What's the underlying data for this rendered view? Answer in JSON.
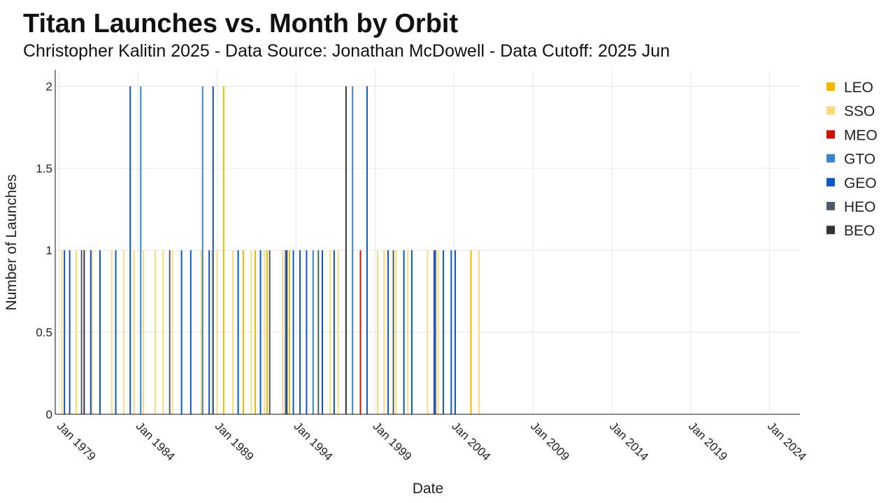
{
  "chart_data": {
    "type": "bar",
    "title": "Titan Launches vs. Month by Orbit",
    "subtitle": "Christopher Kalitin 2025 - Data Source: Jonathan McDowell - Data Cutoff: 2025 Jun",
    "xlabel": "Date",
    "ylabel": "Number of Launches",
    "xlim": [
      "1978-10",
      "2025-12"
    ],
    "ylim": [
      0,
      2.1
    ],
    "x_ticks": [
      "Jan 1979",
      "Jan 1984",
      "Jan 1989",
      "Jan 1994",
      "Jan 1999",
      "Jan 2004",
      "Jan 2009",
      "Jan 2014",
      "Jan 2019",
      "Jan 2024"
    ],
    "x_tick_dates": [
      "1979-01",
      "1984-01",
      "1989-01",
      "1994-01",
      "1999-01",
      "2004-01",
      "2009-01",
      "2014-01",
      "2019-01",
      "2024-01"
    ],
    "y_ticks": [
      0,
      0.5,
      1,
      1.5,
      2
    ],
    "y_tick_labels": [
      "0",
      "0.5",
      "1",
      "1.5",
      "2"
    ],
    "grid": true,
    "legend_position": "right",
    "series": [
      {
        "name": "LEO",
        "color": "#f5b800",
        "points": [
          {
            "x": "1989-06",
            "y": 2
          },
          {
            "x": "1990-09",
            "y": 1
          },
          {
            "x": "1991-06",
            "y": 1
          },
          {
            "x": "1992-03",
            "y": 1
          },
          {
            "x": "1993-08",
            "y": 1
          },
          {
            "x": "2005-02",
            "y": 1
          }
        ]
      },
      {
        "name": "SSO",
        "color": "#fcd97a",
        "points": [
          {
            "x": "1979-03",
            "y": 1
          },
          {
            "x": "1980-02",
            "y": 1
          },
          {
            "x": "1981-02",
            "y": 1
          },
          {
            "x": "1982-05",
            "y": 1
          },
          {
            "x": "1983-02",
            "y": 1
          },
          {
            "x": "1983-10",
            "y": 1
          },
          {
            "x": "1984-05",
            "y": 1
          },
          {
            "x": "1985-02",
            "y": 1
          },
          {
            "x": "1985-08",
            "y": 1
          },
          {
            "x": "1986-03",
            "y": 1
          },
          {
            "x": "1988-01",
            "y": 1
          },
          {
            "x": "1988-09",
            "y": 1
          },
          {
            "x": "1989-01",
            "y": 1
          },
          {
            "x": "1990-01",
            "y": 1
          },
          {
            "x": "1991-03",
            "y": 1
          },
          {
            "x": "1992-01",
            "y": 1
          },
          {
            "x": "1993-03",
            "y": 1
          },
          {
            "x": "1996-03",
            "y": 1
          },
          {
            "x": "1996-09",
            "y": 1
          },
          {
            "x": "1997-03",
            "y": 1
          },
          {
            "x": "1999-03",
            "y": 1
          },
          {
            "x": "1999-08",
            "y": 1
          },
          {
            "x": "2000-05",
            "y": 1
          },
          {
            "x": "2001-02",
            "y": 1
          },
          {
            "x": "2002-05",
            "y": 1
          },
          {
            "x": "2003-01",
            "y": 1
          },
          {
            "x": "2005-08",
            "y": 1
          }
        ]
      },
      {
        "name": "MEO",
        "color": "#cc1100",
        "points": [
          {
            "x": "1998-02",
            "y": 1
          }
        ]
      },
      {
        "name": "GTO",
        "color": "#3a84c9",
        "points": [
          {
            "x": "1984-03",
            "y": 2
          },
          {
            "x": "1988-02",
            "y": 2
          },
          {
            "x": "1997-08",
            "y": 2
          },
          {
            "x": "1993-05",
            "y": 1
          },
          {
            "x": "1995-02",
            "y": 1
          }
        ]
      },
      {
        "name": "GEO",
        "color": "#0d56c9",
        "points": [
          {
            "x": "1979-05",
            "y": 1
          },
          {
            "x": "1979-09",
            "y": 1
          },
          {
            "x": "1981-01",
            "y": 1
          },
          {
            "x": "1981-08",
            "y": 1
          },
          {
            "x": "1982-08",
            "y": 1
          },
          {
            "x": "1983-07",
            "y": 2
          },
          {
            "x": "1986-10",
            "y": 1
          },
          {
            "x": "1987-05",
            "y": 1
          },
          {
            "x": "1988-07",
            "y": 1
          },
          {
            "x": "1988-10",
            "y": 2
          },
          {
            "x": "1990-05",
            "y": 1
          },
          {
            "x": "1991-10",
            "y": 1
          },
          {
            "x": "1993-11",
            "y": 1
          },
          {
            "x": "1994-04",
            "y": 1
          },
          {
            "x": "1994-09",
            "y": 1
          },
          {
            "x": "1995-09",
            "y": 1
          },
          {
            "x": "1996-06",
            "y": 1
          },
          {
            "x": "1998-07",
            "y": 2
          },
          {
            "x": "1999-11",
            "y": 1
          },
          {
            "x": "2000-11",
            "y": 1
          },
          {
            "x": "2001-05",
            "y": 1
          },
          {
            "x": "2002-10",
            "y": 1
          },
          {
            "x": "2003-05",
            "y": 1
          },
          {
            "x": "2003-11",
            "y": 1
          },
          {
            "x": "2004-02",
            "y": 1
          }
        ]
      },
      {
        "name": "HEO",
        "color": "#4d5b6b",
        "points": [
          {
            "x": "1980-06",
            "y": 1
          },
          {
            "x": "1986-01",
            "y": 1
          },
          {
            "x": "1992-05",
            "y": 1
          },
          {
            "x": "1995-06",
            "y": 1
          },
          {
            "x": "2000-03",
            "y": 1
          },
          {
            "x": "2002-11",
            "y": 1
          }
        ]
      },
      {
        "name": "BEO",
        "color": "#333333",
        "points": [
          {
            "x": "1980-08",
            "y": 1
          },
          {
            "x": "1993-06",
            "y": 1
          },
          {
            "x": "1997-03",
            "y": 2
          }
        ]
      }
    ]
  }
}
